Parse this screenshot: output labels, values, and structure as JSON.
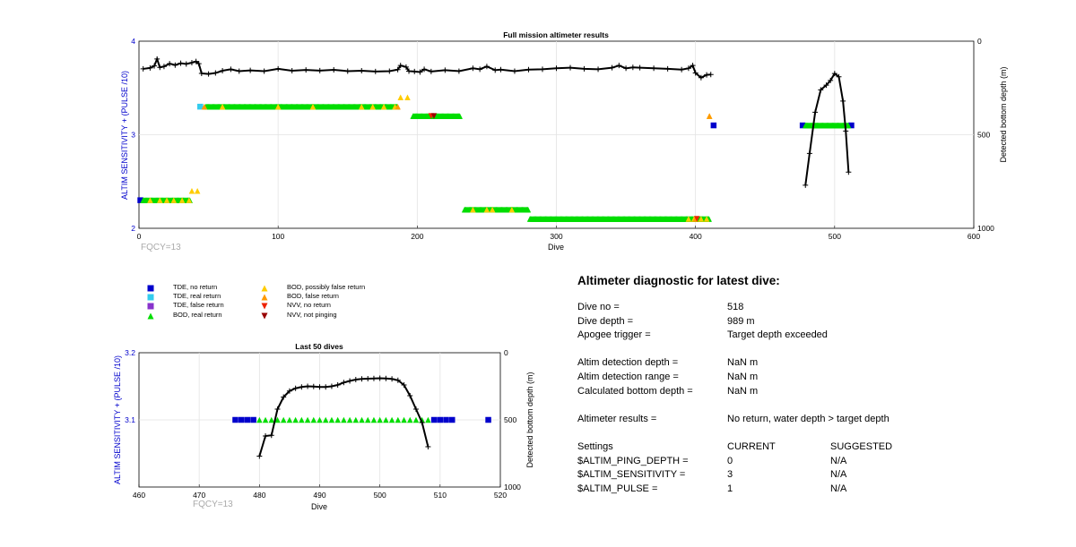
{
  "main_plot": {
    "title": "Full mission altimeter results",
    "xlabel": "Dive",
    "ylabel_left": "ALTIM SENSITIVITY + (PULSE /10)",
    "ylabel_right": "Detected bottom depth (m)",
    "fqcy_label": "FQCY=13"
  },
  "small_plot": {
    "title": "Last 50 dives",
    "xlabel": "Dive",
    "ylabel_left": "ALTIM SENSITIVITY + (PULSE /10)",
    "ylabel_right": "Detected bottom depth (m)",
    "fqcy_label": "FQCY=13"
  },
  "legend": [
    {
      "label": "TDE, no return",
      "marker": "square",
      "color": "#0000cc"
    },
    {
      "label": "TDE, real return",
      "marker": "square",
      "color": "#33ccee"
    },
    {
      "label": "TDE, false return",
      "marker": "square",
      "color": "#8833cc"
    },
    {
      "label": "BOD, real return",
      "marker": "triangle-up",
      "color": "#00dd00"
    },
    {
      "label": "BOD, possibly false return",
      "marker": "triangle-up",
      "color": "#ffcc00"
    },
    {
      "label": "BOD, false return",
      "marker": "triangle-up",
      "color": "#ff9900"
    },
    {
      "label": "NVV, no return",
      "marker": "triangle-down",
      "color": "#ee2200"
    },
    {
      "label": "NVV, not pinging",
      "marker": "triangle-down",
      "color": "#990000"
    }
  ],
  "diagnostic": {
    "title": "Altimeter diagnostic for latest dive:",
    "dive_no": {
      "label": "Dive no =",
      "value": "518"
    },
    "dive_depth": {
      "label": "Dive depth =",
      "value": "989 m"
    },
    "apogee": {
      "label": "Apogee trigger =",
      "value": "Target depth exceeded"
    },
    "detect_depth": {
      "label": "Altim detection depth =",
      "value": "NaN m"
    },
    "detect_range": {
      "label": "Altim detection range =",
      "value": "NaN m"
    },
    "calc_bottom": {
      "label": "Calculated bottom depth =",
      "value": "NaN m"
    },
    "results": {
      "label": "Altimeter results =",
      "value": "No return, water depth > target depth"
    },
    "settings_header": {
      "label": "Settings",
      "current": "CURRENT",
      "suggested": "SUGGESTED"
    },
    "settings": [
      {
        "name": "$ALTIM_PING_DEPTH =",
        "current": "0",
        "suggested": "N/A"
      },
      {
        "name": "$ALTIM_SENSITIVITY =",
        "current": "3",
        "suggested": "N/A"
      },
      {
        "name": "$ALTIM_PULSE =",
        "current": "1",
        "suggested": "N/A"
      }
    ]
  },
  "chart_data": [
    {
      "type": "scatter",
      "title": "Full mission altimeter results",
      "xlabel": "Dive",
      "ylabel": "ALTIM SENSITIVITY + (PULSE /10)",
      "ylabel_right": "Detected bottom depth (m)",
      "xlim": [
        0,
        600
      ],
      "ylim": [
        2,
        4
      ],
      "ylim_right": [
        1000,
        0
      ],
      "x_ticks": [
        0,
        100,
        200,
        300,
        400,
        500,
        600
      ],
      "y_ticks": [
        2,
        3,
        4
      ],
      "y_ticks_right": [
        0,
        500,
        1000
      ],
      "grid": true,
      "annotations": [
        "FQCY=13"
      ],
      "series": [
        {
          "name": "TDE, no return",
          "marker": "square",
          "color": "#0000cc",
          "points": [
            [
              1,
              2.3
            ],
            [
              413,
              3.1
            ],
            [
              477,
              3.1
            ],
            [
              512,
              3.1
            ]
          ]
        },
        {
          "name": "TDE, real return",
          "marker": "square",
          "color": "#33ccee",
          "points": [
            [
              44,
              3.3
            ]
          ]
        },
        {
          "name": "BOD, real return",
          "marker": "triangle-up",
          "color": "#00dd00",
          "segments": [
            {
              "x": [
                3,
                37
              ],
              "y": 2.3
            },
            {
              "x": [
                48,
                186
              ],
              "y": 3.3
            },
            {
              "x": [
                197,
                231
              ],
              "y": 3.2
            },
            {
              "x": [
                234,
                280
              ],
              "y": 2.2
            },
            {
              "x": [
                281,
                410
              ],
              "y": 2.1
            },
            {
              "x": [
                479,
                510
              ],
              "y": 3.1
            }
          ]
        },
        {
          "name": "BOD, possibly false return",
          "marker": "triangle-up",
          "color": "#ffcc00",
          "points": [
            [
              8,
              2.3
            ],
            [
              15,
              2.3
            ],
            [
              20,
              2.3
            ],
            [
              25,
              2.3
            ],
            [
              31,
              2.3
            ],
            [
              36,
              2.3
            ],
            [
              38,
              2.4
            ],
            [
              42,
              2.4
            ],
            [
              60,
              3.3
            ],
            [
              100,
              3.3
            ],
            [
              125,
              3.3
            ],
            [
              160,
              3.3
            ],
            [
              168,
              3.3
            ],
            [
              176,
              3.3
            ],
            [
              184,
              3.3
            ],
            [
              188,
              3.4
            ],
            [
              193,
              3.4
            ],
            [
              240,
              2.2
            ],
            [
              250,
              2.2
            ],
            [
              254,
              2.2
            ],
            [
              268,
              2.2
            ],
            [
              395,
              2.1
            ],
            [
              399,
              2.1
            ],
            [
              404,
              2.1
            ],
            [
              408,
              2.1
            ],
            [
              410,
              3.2
            ]
          ]
        },
        {
          "name": "BOD, false return",
          "marker": "triangle-up",
          "color": "#ff9900",
          "points": [
            [
              47,
              3.3
            ],
            [
              186,
              3.3
            ],
            [
              400,
              2.1
            ],
            [
              410,
              3.2
            ]
          ]
        },
        {
          "name": "NVV, no return",
          "marker": "triangle-down",
          "color": "#ee2200",
          "points": [
            [
              210,
              3.2
            ],
            [
              401,
              2.1
            ]
          ]
        },
        {
          "name": "NVV, not pinging",
          "marker": "triangle-down",
          "color": "#990000",
          "points": [
            [
              212,
              3.2
            ]
          ]
        }
      ],
      "depth_series": {
        "name": "Detected bottom depth",
        "color": "#000000",
        "y_axis": "right",
        "points": [
          [
            3,
            148
          ],
          [
            8,
            143
          ],
          [
            11,
            132
          ],
          [
            13,
            95
          ],
          [
            15,
            140
          ],
          [
            18,
            135
          ],
          [
            22,
            120
          ],
          [
            26,
            128
          ],
          [
            30,
            118
          ],
          [
            34,
            122
          ],
          [
            38,
            115
          ],
          [
            41,
            108
          ],
          [
            43,
            120
          ],
          [
            45,
            172
          ],
          [
            50,
            175
          ],
          [
            55,
            170
          ],
          [
            60,
            158
          ],
          [
            66,
            150
          ],
          [
            72,
            160
          ],
          [
            80,
            156
          ],
          [
            90,
            160
          ],
          [
            100,
            148
          ],
          [
            110,
            158
          ],
          [
            120,
            154
          ],
          [
            130,
            157
          ],
          [
            140,
            153
          ],
          [
            150,
            160
          ],
          [
            160,
            158
          ],
          [
            170,
            162
          ],
          [
            180,
            160
          ],
          [
            186,
            152
          ],
          [
            188,
            130
          ],
          [
            192,
            138
          ],
          [
            194,
            160
          ],
          [
            198,
            162
          ],
          [
            202,
            165
          ],
          [
            205,
            150
          ],
          [
            210,
            162
          ],
          [
            220,
            155
          ],
          [
            230,
            160
          ],
          [
            240,
            145
          ],
          [
            245,
            150
          ],
          [
            250,
            135
          ],
          [
            256,
            155
          ],
          [
            260,
            152
          ],
          [
            270,
            160
          ],
          [
            280,
            152
          ],
          [
            290,
            150
          ],
          [
            300,
            145
          ],
          [
            310,
            142
          ],
          [
            320,
            148
          ],
          [
            330,
            150
          ],
          [
            340,
            142
          ],
          [
            345,
            130
          ],
          [
            350,
            145
          ],
          [
            355,
            140
          ],
          [
            360,
            142
          ],
          [
            370,
            145
          ],
          [
            380,
            148
          ],
          [
            390,
            152
          ],
          [
            395,
            145
          ],
          [
            398,
            130
          ],
          [
            400,
            170
          ],
          [
            404,
            195
          ],
          [
            408,
            180
          ],
          [
            411,
            178
          ],
          [
            479,
            770
          ],
          [
            482,
            600
          ],
          [
            486,
            380
          ],
          [
            490,
            260
          ],
          [
            494,
            235
          ],
          [
            497,
            210
          ],
          [
            500,
            173
          ],
          [
            503,
            190
          ],
          [
            506,
            320
          ],
          [
            508,
            480
          ],
          [
            510,
            700
          ]
        ]
      }
    },
    {
      "type": "scatter",
      "title": "Last 50 dives",
      "xlabel": "Dive",
      "ylabel": "ALTIM SENSITIVITY + (PULSE /10)",
      "ylabel_right": "Detected bottom depth (m)",
      "xlim": [
        460,
        520
      ],
      "ylim": [
        3.0,
        3.2
      ],
      "ylim_right": [
        1000,
        0
      ],
      "x_ticks": [
        460,
        470,
        480,
        490,
        500,
        510,
        520
      ],
      "y_ticks": [
        3.1,
        3.2
      ],
      "y_ticks_right": [
        0,
        500,
        1000
      ],
      "grid": true,
      "annotations": [
        "FQCY=13"
      ],
      "series": [
        {
          "name": "TDE, no return",
          "marker": "square",
          "color": "#0000cc",
          "points": [
            [
              476,
              3.1
            ],
            [
              477,
              3.1
            ],
            [
              478,
              3.1
            ],
            [
              479,
              3.1
            ],
            [
              509,
              3.1
            ],
            [
              510,
              3.1
            ],
            [
              511,
              3.1
            ],
            [
              512,
              3.1
            ],
            [
              518,
              3.1
            ]
          ]
        },
        {
          "name": "BOD, real return",
          "marker": "triangle-up",
          "color": "#00dd00",
          "points": [
            [
              480,
              3.1
            ],
            [
              481,
              3.1
            ],
            [
              482,
              3.1
            ],
            [
              483,
              3.1
            ],
            [
              484,
              3.1
            ],
            [
              485,
              3.1
            ],
            [
              486,
              3.1
            ],
            [
              487,
              3.1
            ],
            [
              488,
              3.1
            ],
            [
              489,
              3.1
            ],
            [
              490,
              3.1
            ],
            [
              491,
              3.1
            ],
            [
              492,
              3.1
            ],
            [
              493,
              3.1
            ],
            [
              494,
              3.1
            ],
            [
              495,
              3.1
            ],
            [
              496,
              3.1
            ],
            [
              497,
              3.1
            ],
            [
              498,
              3.1
            ],
            [
              499,
              3.1
            ],
            [
              500,
              3.1
            ],
            [
              501,
              3.1
            ],
            [
              502,
              3.1
            ],
            [
              503,
              3.1
            ],
            [
              504,
              3.1
            ],
            [
              505,
              3.1
            ],
            [
              506,
              3.1
            ],
            [
              507,
              3.1
            ],
            [
              508,
              3.1
            ]
          ]
        }
      ],
      "depth_series": {
        "name": "Detected bottom depth",
        "color": "#000000",
        "y_axis": "right",
        "points": [
          [
            480,
            770
          ],
          [
            481,
            620
          ],
          [
            482,
            615
          ],
          [
            483,
            420
          ],
          [
            484,
            330
          ],
          [
            485,
            285
          ],
          [
            486,
            265
          ],
          [
            487,
            255
          ],
          [
            488,
            250
          ],
          [
            489,
            252
          ],
          [
            490,
            255
          ],
          [
            491,
            255
          ],
          [
            492,
            250
          ],
          [
            493,
            240
          ],
          [
            494,
            222
          ],
          [
            495,
            210
          ],
          [
            496,
            200
          ],
          [
            497,
            195
          ],
          [
            498,
            193
          ],
          [
            499,
            192
          ],
          [
            500,
            190
          ],
          [
            501,
            192
          ],
          [
            502,
            195
          ],
          [
            503,
            205
          ],
          [
            504,
            240
          ],
          [
            505,
            320
          ],
          [
            506,
            420
          ],
          [
            507,
            520
          ],
          [
            508,
            700
          ]
        ]
      }
    }
  ]
}
